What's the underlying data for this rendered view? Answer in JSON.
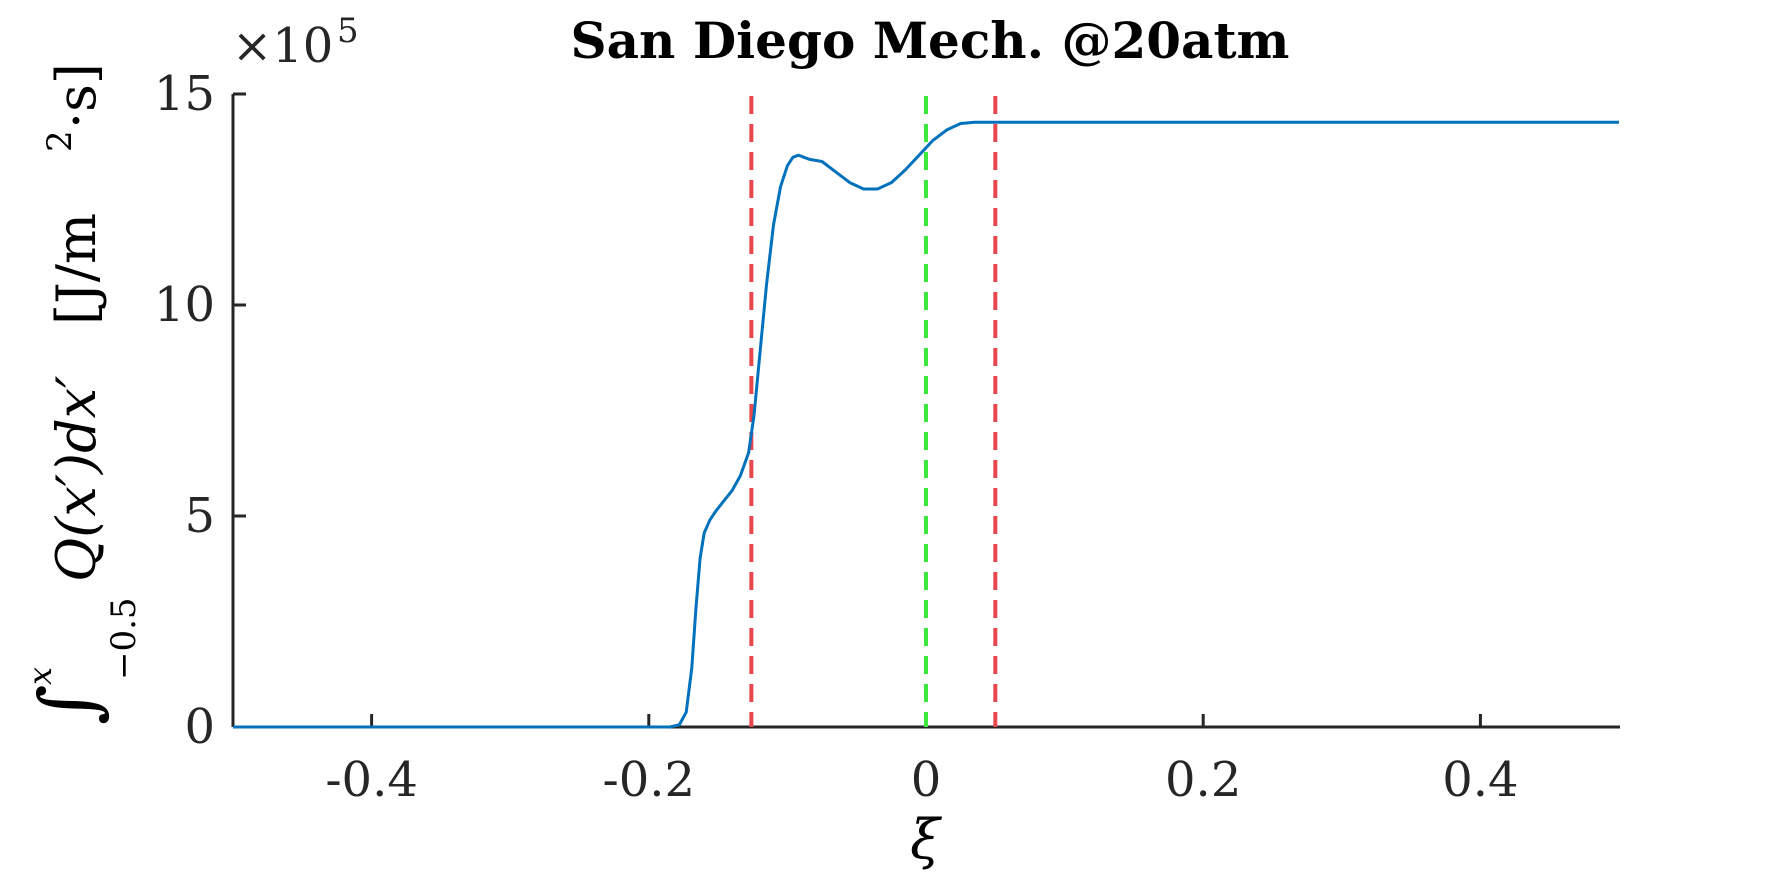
{
  "chart_data": {
    "type": "line",
    "title": "San Diego Mech. @20atm",
    "xlabel": "ξ",
    "ylabel": {
      "integral_sign": "∫",
      "upper_limit": "x",
      "lower_limit": "−0.5",
      "integrand": "Q(x′)dx′",
      "units_prefix": "[J/m",
      "units_power": "2",
      "units_suffix": "·s]"
    },
    "y_multiplier": {
      "base": "×10",
      "exponent": "5"
    },
    "xlim": [
      -0.5,
      0.5
    ],
    "ylim": [
      0,
      15
    ],
    "xticks": [
      -0.4,
      -0.2,
      0,
      0.2,
      0.4
    ],
    "xtick_labels": [
      "-0.4",
      "-0.2",
      "0",
      "0.2",
      "0.4"
    ],
    "yticks": [
      0,
      5,
      10,
      15
    ],
    "ytick_labels": [
      "0",
      "5",
      "10",
      "15"
    ],
    "grid": false,
    "series": [
      {
        "color": "#0072BD",
        "x": [
          -0.5,
          -0.2,
          -0.185,
          -0.178,
          -0.173,
          -0.169,
          -0.166,
          -0.163,
          -0.16,
          -0.156,
          -0.152,
          -0.146,
          -0.14,
          -0.134,
          -0.128,
          -0.124,
          -0.12,
          -0.115,
          -0.11,
          -0.105,
          -0.1,
          -0.096,
          -0.092,
          -0.088,
          -0.084,
          -0.075,
          -0.065,
          -0.055,
          -0.045,
          -0.035,
          -0.025,
          -0.015,
          -0.005,
          0.005,
          0.015,
          0.025,
          0.035,
          0.05,
          0.2,
          0.5
        ],
        "y": [
          0,
          0,
          0,
          0.05,
          0.35,
          1.4,
          2.8,
          4.0,
          4.6,
          4.9,
          5.1,
          5.35,
          5.6,
          5.95,
          6.5,
          7.4,
          8.8,
          10.5,
          11.9,
          12.8,
          13.3,
          13.5,
          13.55,
          13.5,
          13.45,
          13.4,
          13.15,
          12.9,
          12.75,
          12.75,
          12.9,
          13.2,
          13.55,
          13.9,
          14.15,
          14.3,
          14.33,
          14.33,
          14.33,
          14.33
        ]
      }
    ],
    "vlines": [
      {
        "x": -0.126,
        "color": "#E8474C"
      },
      {
        "x": 0.0,
        "color": "#3EE83E"
      },
      {
        "x": 0.05,
        "color": "#E8474C"
      }
    ]
  }
}
